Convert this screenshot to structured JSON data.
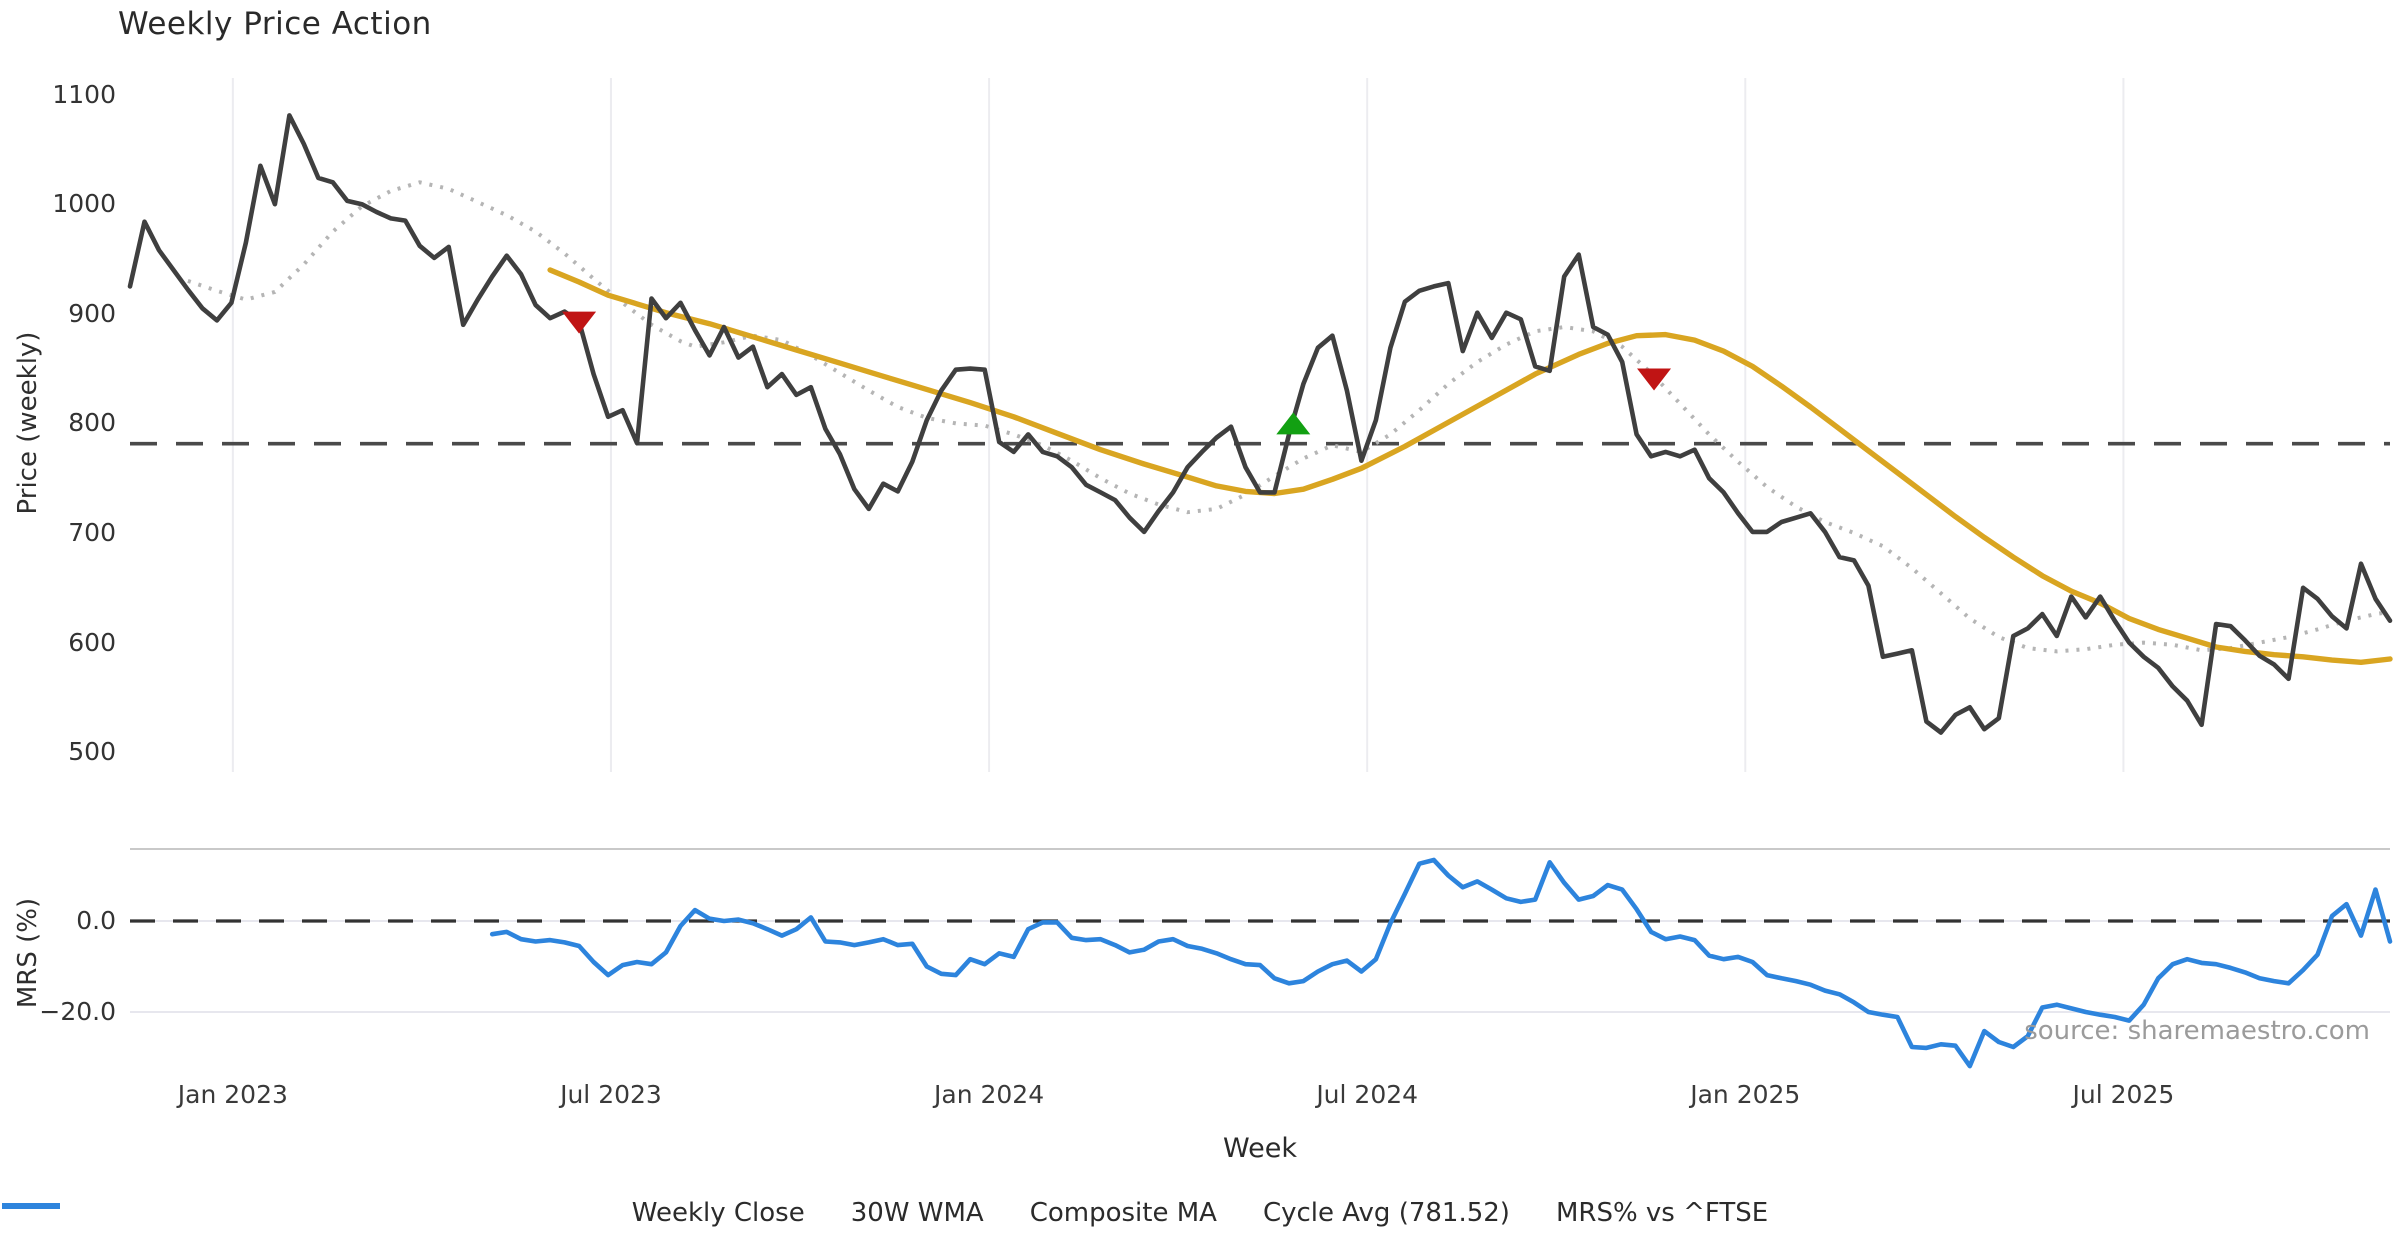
{
  "title": "Weekly Price Action",
  "xlabel": "Week",
  "source": "source: sharemaestro.com",
  "colors": {
    "close": "#3f3f3f",
    "wma": "#d9a521",
    "composite": "#b5b5b5",
    "cycle": "#4a4a4a",
    "mrs": "#2d84dd",
    "sell_marker": "#c01414",
    "buy_marker": "#12a012",
    "gridline": "#ececf0",
    "panel_border": "#c9c9c9",
    "light_rule": "#e7e7ee",
    "tick_text": "#333333"
  },
  "chart_data": [
    {
      "type": "line",
      "panel": "price",
      "title": "Weekly Price Action",
      "xlabel": "Week",
      "ylabel": "Price (weekly)",
      "ylim": [
        480,
        1120
      ],
      "yticks": [
        1100,
        1000,
        900,
        800,
        700,
        600,
        500
      ],
      "xticks": [
        {
          "week": 7.1,
          "label": "Jan 2023"
        },
        {
          "week": 33.2,
          "label": "Jul 2023"
        },
        {
          "week": 59.3,
          "label": "Jan 2024"
        },
        {
          "week": 85.4,
          "label": "Jul 2024"
        },
        {
          "week": 111.5,
          "label": "Jan 2025"
        },
        {
          "week": 137.6,
          "label": "Jul 2025"
        }
      ],
      "grid": "vertical-only",
      "cycle_avg": 781.52,
      "series": [
        {
          "name": "Weekly Close",
          "style": "solid",
          "start_week": 0,
          "values": [
            925,
            984,
            958,
            940,
            922,
            905,
            894,
            910,
            965,
            1035,
            1000,
            1081,
            1055,
            1024,
            1020,
            1003,
            1000,
            993,
            987,
            985,
            962,
            951,
            961,
            890,
            913,
            934,
            953,
            936,
            908,
            896,
            902,
            893,
            845,
            806,
            812,
            782,
            914,
            896,
            910,
            885,
            862,
            888,
            860,
            870,
            833,
            845,
            826,
            833,
            795,
            772,
            740,
            722,
            745,
            738,
            765,
            803,
            830,
            849,
            850,
            849,
            783,
            774,
            790,
            774,
            770,
            760,
            744,
            737,
            730,
            714,
            701,
            720,
            737,
            760,
            774,
            787,
            797,
            760,
            737,
            737,
            790,
            836,
            869,
            880,
            830,
            766,
            803,
            869,
            911,
            921,
            925,
            928,
            866,
            901,
            878,
            901,
            895,
            852,
            848,
            934,
            954,
            888,
            881,
            856,
            790,
            770,
            774,
            770,
            776,
            750,
            737,
            718,
            701,
            701,
            710,
            714,
            718,
            701,
            678,
            675,
            652,
            587,
            590,
            593,
            528,
            518,
            534,
            541,
            521,
            531,
            606,
            613,
            626,
            606,
            642,
            623,
            642,
            620,
            600,
            587,
            577,
            560,
            547,
            525,
            617,
            615,
            602,
            588,
            580,
            567,
            650,
            640,
            624,
            613,
            672,
            640,
            620
          ]
        },
        {
          "name": "30W WMA",
          "style": "solid",
          "points": [
            [
              29,
              940
            ],
            [
              31,
              929
            ],
            [
              33,
              917
            ],
            [
              35,
              909
            ],
            [
              37,
              901
            ],
            [
              40,
              891
            ],
            [
              43,
              879
            ],
            [
              46,
              867
            ],
            [
              49,
              855
            ],
            [
              52,
              843
            ],
            [
              55,
              831
            ],
            [
              58,
              819
            ],
            [
              61,
              806
            ],
            [
              64,
              791
            ],
            [
              67,
              776
            ],
            [
              70,
              763
            ],
            [
              73,
              751
            ],
            [
              75,
              743
            ],
            [
              77,
              738
            ],
            [
              79,
              736
            ],
            [
              81,
              740
            ],
            [
              83,
              749
            ],
            [
              85,
              759
            ],
            [
              88,
              779
            ],
            [
              91,
              801
            ],
            [
              94,
              823
            ],
            [
              97,
              845
            ],
            [
              100,
              863
            ],
            [
              102,
              873
            ],
            [
              104,
              880
            ],
            [
              106,
              881
            ],
            [
              108,
              876
            ],
            [
              110,
              866
            ],
            [
              112,
              852
            ],
            [
              114,
              834
            ],
            [
              116,
              815
            ],
            [
              118,
              795
            ],
            [
              120,
              775
            ],
            [
              122,
              755
            ],
            [
              124,
              735
            ],
            [
              126,
              715
            ],
            [
              128,
              696
            ],
            [
              130,
              678
            ],
            [
              132,
              661
            ],
            [
              134,
              647
            ],
            [
              136,
              636
            ],
            [
              138,
              622
            ],
            [
              140,
              612
            ],
            [
              142,
              604
            ],
            [
              144,
              596
            ],
            [
              146,
              592
            ],
            [
              148,
              589
            ],
            [
              150,
              587
            ],
            [
              152,
              584
            ],
            [
              154,
              582
            ],
            [
              156,
              585
            ]
          ]
        },
        {
          "name": "Composite MA",
          "style": "dotted",
          "points": [
            [
              4,
              930
            ],
            [
              6,
              921
            ],
            [
              8,
              913
            ],
            [
              10,
              920
            ],
            [
              12,
              945
            ],
            [
              14,
              975
            ],
            [
              16,
              998
            ],
            [
              18,
              1012
            ],
            [
              20,
              1020
            ],
            [
              22,
              1014
            ],
            [
              24,
              1002
            ],
            [
              26,
              990
            ],
            [
              28,
              975
            ],
            [
              30,
              955
            ],
            [
              32,
              932
            ],
            [
              34,
              910
            ],
            [
              36,
              890
            ],
            [
              38,
              875
            ],
            [
              39,
              870
            ],
            [
              41,
              874
            ],
            [
              43,
              880
            ],
            [
              45,
              876
            ],
            [
              47,
              862
            ],
            [
              49,
              846
            ],
            [
              51,
              830
            ],
            [
              53,
              815
            ],
            [
              55,
              805
            ],
            [
              57,
              800
            ],
            [
              59,
              798
            ],
            [
              61,
              790
            ],
            [
              63,
              780
            ],
            [
              65,
              766
            ],
            [
              67,
              750
            ],
            [
              69,
              736
            ],
            [
              71,
              726
            ],
            [
              73,
              719
            ],
            [
              75,
              722
            ],
            [
              77,
              735
            ],
            [
              79,
              752
            ],
            [
              81,
              768
            ],
            [
              83,
              780
            ],
            [
              85,
              774
            ],
            [
              87,
              790
            ],
            [
              89,
              812
            ],
            [
              91,
              836
            ],
            [
              93,
              856
            ],
            [
              95,
              872
            ],
            [
              97,
              884
            ],
            [
              99,
              888
            ],
            [
              101,
              884
            ],
            [
              103,
              870
            ],
            [
              105,
              846
            ],
            [
              107,
              818
            ],
            [
              109,
              790
            ],
            [
              111,
              765
            ],
            [
              113,
              742
            ],
            [
              115,
              724
            ],
            [
              117,
              710
            ],
            [
              119,
              700
            ],
            [
              121,
              688
            ],
            [
              123,
              668
            ],
            [
              125,
              645
            ],
            [
              127,
              622
            ],
            [
              129,
              605
            ],
            [
              131,
              595
            ],
            [
              133,
              592
            ],
            [
              135,
              594
            ],
            [
              137,
              598
            ],
            [
              139,
              600
            ],
            [
              141,
              598
            ],
            [
              143,
              593
            ],
            [
              145,
              595
            ],
            [
              147,
              600
            ],
            [
              149,
              605
            ],
            [
              151,
              612
            ],
            [
              153,
              620
            ],
            [
              155,
              626
            ],
            [
              156,
              628
            ]
          ]
        }
      ],
      "markers": [
        {
          "type": "sell",
          "shape": "triangle-down",
          "week": 31,
          "value": 892
        },
        {
          "type": "buy",
          "shape": "triangle-up",
          "week": 80.3,
          "value": 800
        },
        {
          "type": "sell",
          "shape": "triangle-down",
          "week": 105.2,
          "value": 840
        }
      ]
    },
    {
      "type": "line",
      "panel": "mrs",
      "ylabel": "MRS (%)",
      "ylim": [
        -34,
        16
      ],
      "yticks": [
        {
          "v": 0,
          "label": "0.0"
        },
        {
          "v": -20,
          "label": "−20.0"
        }
      ],
      "zero_line": "dashed",
      "series": [
        {
          "name": "MRS% vs ^FTSE",
          "style": "solid",
          "start_week": 25,
          "values": [
            -2.9,
            -2.4,
            -4.0,
            -4.5,
            -4.2,
            -4.7,
            -5.5,
            -9.0,
            -11.9,
            -9.7,
            -9.0,
            -9.5,
            -6.9,
            -1.1,
            2.4,
            0.5,
            0.0,
            0.3,
            -0.5,
            -1.8,
            -3.2,
            -1.8,
            0.8,
            -4.5,
            -4.7,
            -5.3,
            -4.7,
            -4.0,
            -5.3,
            -5.0,
            -10.0,
            -11.6,
            -11.9,
            -8.4,
            -9.5,
            -7.1,
            -7.9,
            -1.8,
            -0.3,
            -0.3,
            -3.7,
            -4.2,
            -4.0,
            -5.3,
            -6.9,
            -6.3,
            -4.5,
            -4.0,
            -5.5,
            -6.1,
            -7.1,
            -8.4,
            -9.5,
            -9.7,
            -12.6,
            -13.7,
            -13.2,
            -11.1,
            -9.5,
            -8.7,
            -11.1,
            -8.4,
            -0.5,
            6.0,
            12.6,
            13.4,
            10.0,
            7.4,
            8.7,
            6.9,
            5.0,
            4.2,
            4.7,
            12.9,
            8.4,
            4.7,
            5.5,
            7.9,
            6.9,
            2.6,
            -2.4,
            -4.0,
            -3.4,
            -4.2,
            -7.6,
            -8.4,
            -7.9,
            -9.0,
            -11.9,
            -12.6,
            -13.2,
            -14.0,
            -15.3,
            -16.1,
            -17.9,
            -20.0,
            -20.6,
            -21.1,
            -27.7,
            -27.9,
            -27.1,
            -27.4,
            -31.9,
            -24.2,
            -26.6,
            -27.7,
            -25.3,
            -19.0,
            -18.4,
            -19.2,
            -20.0,
            -20.6,
            -21.1,
            -21.9,
            -18.4,
            -12.6,
            -9.5,
            -8.4,
            -9.2,
            -9.5,
            -10.3,
            -11.3,
            -12.6,
            -13.2,
            -13.7,
            -10.8,
            -7.4,
            1.1,
            3.7,
            -3.2,
            6.9,
            -4.5
          ]
        }
      ]
    }
  ],
  "legend": [
    {
      "label": "Weekly Close",
      "swatch": "solid",
      "color": "#3f3f3f"
    },
    {
      "label": "30W WMA",
      "swatch": "solid",
      "color": "#d9a521"
    },
    {
      "label": "Composite MA",
      "swatch": "dotted",
      "color": "#b5b5b5"
    },
    {
      "label": "Cycle Avg (781.52)",
      "swatch": "dashed",
      "color": "#4a4a4a"
    },
    {
      "label": "MRS% vs ^FTSE",
      "swatch": "solid",
      "color": "#2d84dd"
    }
  ]
}
